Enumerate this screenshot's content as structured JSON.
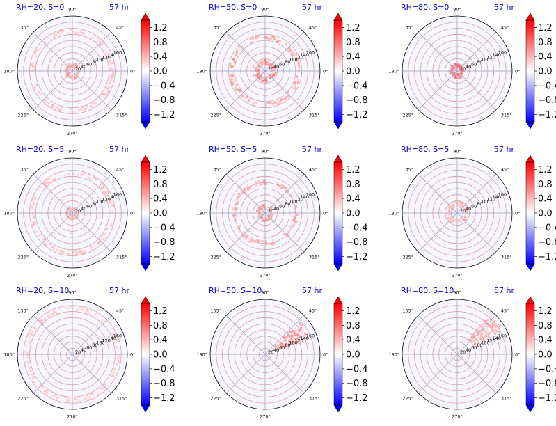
{
  "chart_data": {
    "type": "polar-heatmap-grid",
    "shared": {
      "time_label": "57 hr",
      "angle_ticks": [
        "0°",
        "45°",
        "90°",
        "135°",
        "180°",
        "225°",
        "270°",
        "315°"
      ],
      "radial_ticks": [
        20,
        40,
        60,
        80,
        100,
        120,
        140,
        160
      ],
      "rlim": [
        0,
        180
      ],
      "colorbar": {
        "ticks": [
          1.2,
          0.8,
          0.4,
          0.0,
          -0.4,
          -0.8,
          -1.2
        ],
        "tick_labels": [
          "1.2",
          "0.8",
          "0.4",
          "0.0",
          "−0.4",
          "−0.8",
          "−1.2"
        ],
        "range": [
          -1.4,
          1.4
        ],
        "extend": "both",
        "colormap": "bwr",
        "colors": {
          "high": "#ff0000",
          "mid": "#ffffff",
          "low": "#0000ff"
        }
      },
      "grid_color_angular": "#9a9ac0",
      "grid_color_radial": "#e0a0a0"
    },
    "panels": [
      {
        "title": "RH=20, S=0",
        "rh": 20,
        "s": 0,
        "features": [
          {
            "type": "ring",
            "r": 20,
            "value": 0.5
          },
          {
            "type": "ring",
            "r": 130,
            "value": 0.35
          }
        ]
      },
      {
        "title": "RH=50, S=0",
        "rh": 50,
        "s": 0,
        "features": [
          {
            "type": "ring",
            "r": 28,
            "value": 0.7
          },
          {
            "type": "ring",
            "r": 110,
            "value": 0.55
          }
        ]
      },
      {
        "title": "RH=80, S=0",
        "rh": 80,
        "s": 0,
        "features": [
          {
            "type": "ring",
            "r": 18,
            "value": 0.9
          }
        ]
      },
      {
        "title": "RH=20, S=5",
        "rh": 20,
        "s": 5,
        "features": [
          {
            "type": "ring",
            "r": 15,
            "value": 0.4
          },
          {
            "type": "ring",
            "r": 130,
            "value": 0.35
          }
        ]
      },
      {
        "title": "RH=50, S=5",
        "rh": 50,
        "s": 5,
        "features": [
          {
            "type": "ring",
            "r": 20,
            "value": 0.6
          },
          {
            "type": "ring",
            "r": 100,
            "value": 0.5
          }
        ]
      },
      {
        "title": "RH=80, S=5",
        "rh": 80,
        "s": 5,
        "features": [
          {
            "type": "ring",
            "r": 30,
            "value": 0.4
          }
        ]
      },
      {
        "title": "RH=20, S=10",
        "rh": 20,
        "s": 10,
        "features": [
          {
            "type": "ring",
            "r": 150,
            "value": 0.3
          }
        ]
      },
      {
        "title": "RH=50, S=10",
        "rh": 50,
        "s": 10,
        "features": [
          {
            "type": "band",
            "theta": 30,
            "r_min": 40,
            "r_max": 160,
            "value": 0.6
          }
        ]
      },
      {
        "title": "RH=80, S=10",
        "rh": 80,
        "s": 10,
        "features": [
          {
            "type": "band",
            "theta": 40,
            "r_min": 60,
            "r_max": 170,
            "value": 0.5
          }
        ]
      }
    ]
  }
}
